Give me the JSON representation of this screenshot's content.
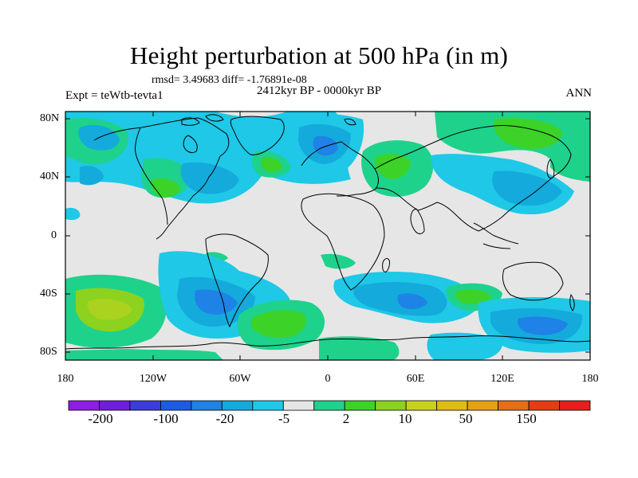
{
  "title": "Height perturbation at 500 hPa (in m)",
  "stats_text": "rmsd= 3.49683 diff= -1.76891e-08",
  "period": "2412kyr BP - 0000kyr BP",
  "experiment": "Expt = teWtb-tevta1",
  "season": "ANN",
  "map": {
    "lat_labels": [
      "80N",
      "40N",
      "0",
      "40S",
      "80S"
    ],
    "lon_labels": [
      "180",
      "120W",
      "60W",
      "0",
      "60E",
      "120E",
      "180"
    ],
    "background_color": "#e6e6e6"
  },
  "colorbar": {
    "colors": [
      "#8c1ee6",
      "#6e1edc",
      "#3c3cdc",
      "#1e5ae6",
      "#1e82e6",
      "#14aadc",
      "#1ec8e6",
      "#e6e6e6",
      "#1ed28c",
      "#3cd228",
      "#8cd21e",
      "#c8d21e",
      "#dcbe14",
      "#e6a014",
      "#e66e14",
      "#e63c14",
      "#e61e1e"
    ],
    "labels": [
      "-200",
      "-100",
      "-20",
      "-5",
      "2",
      "10",
      "50",
      "150"
    ]
  }
}
